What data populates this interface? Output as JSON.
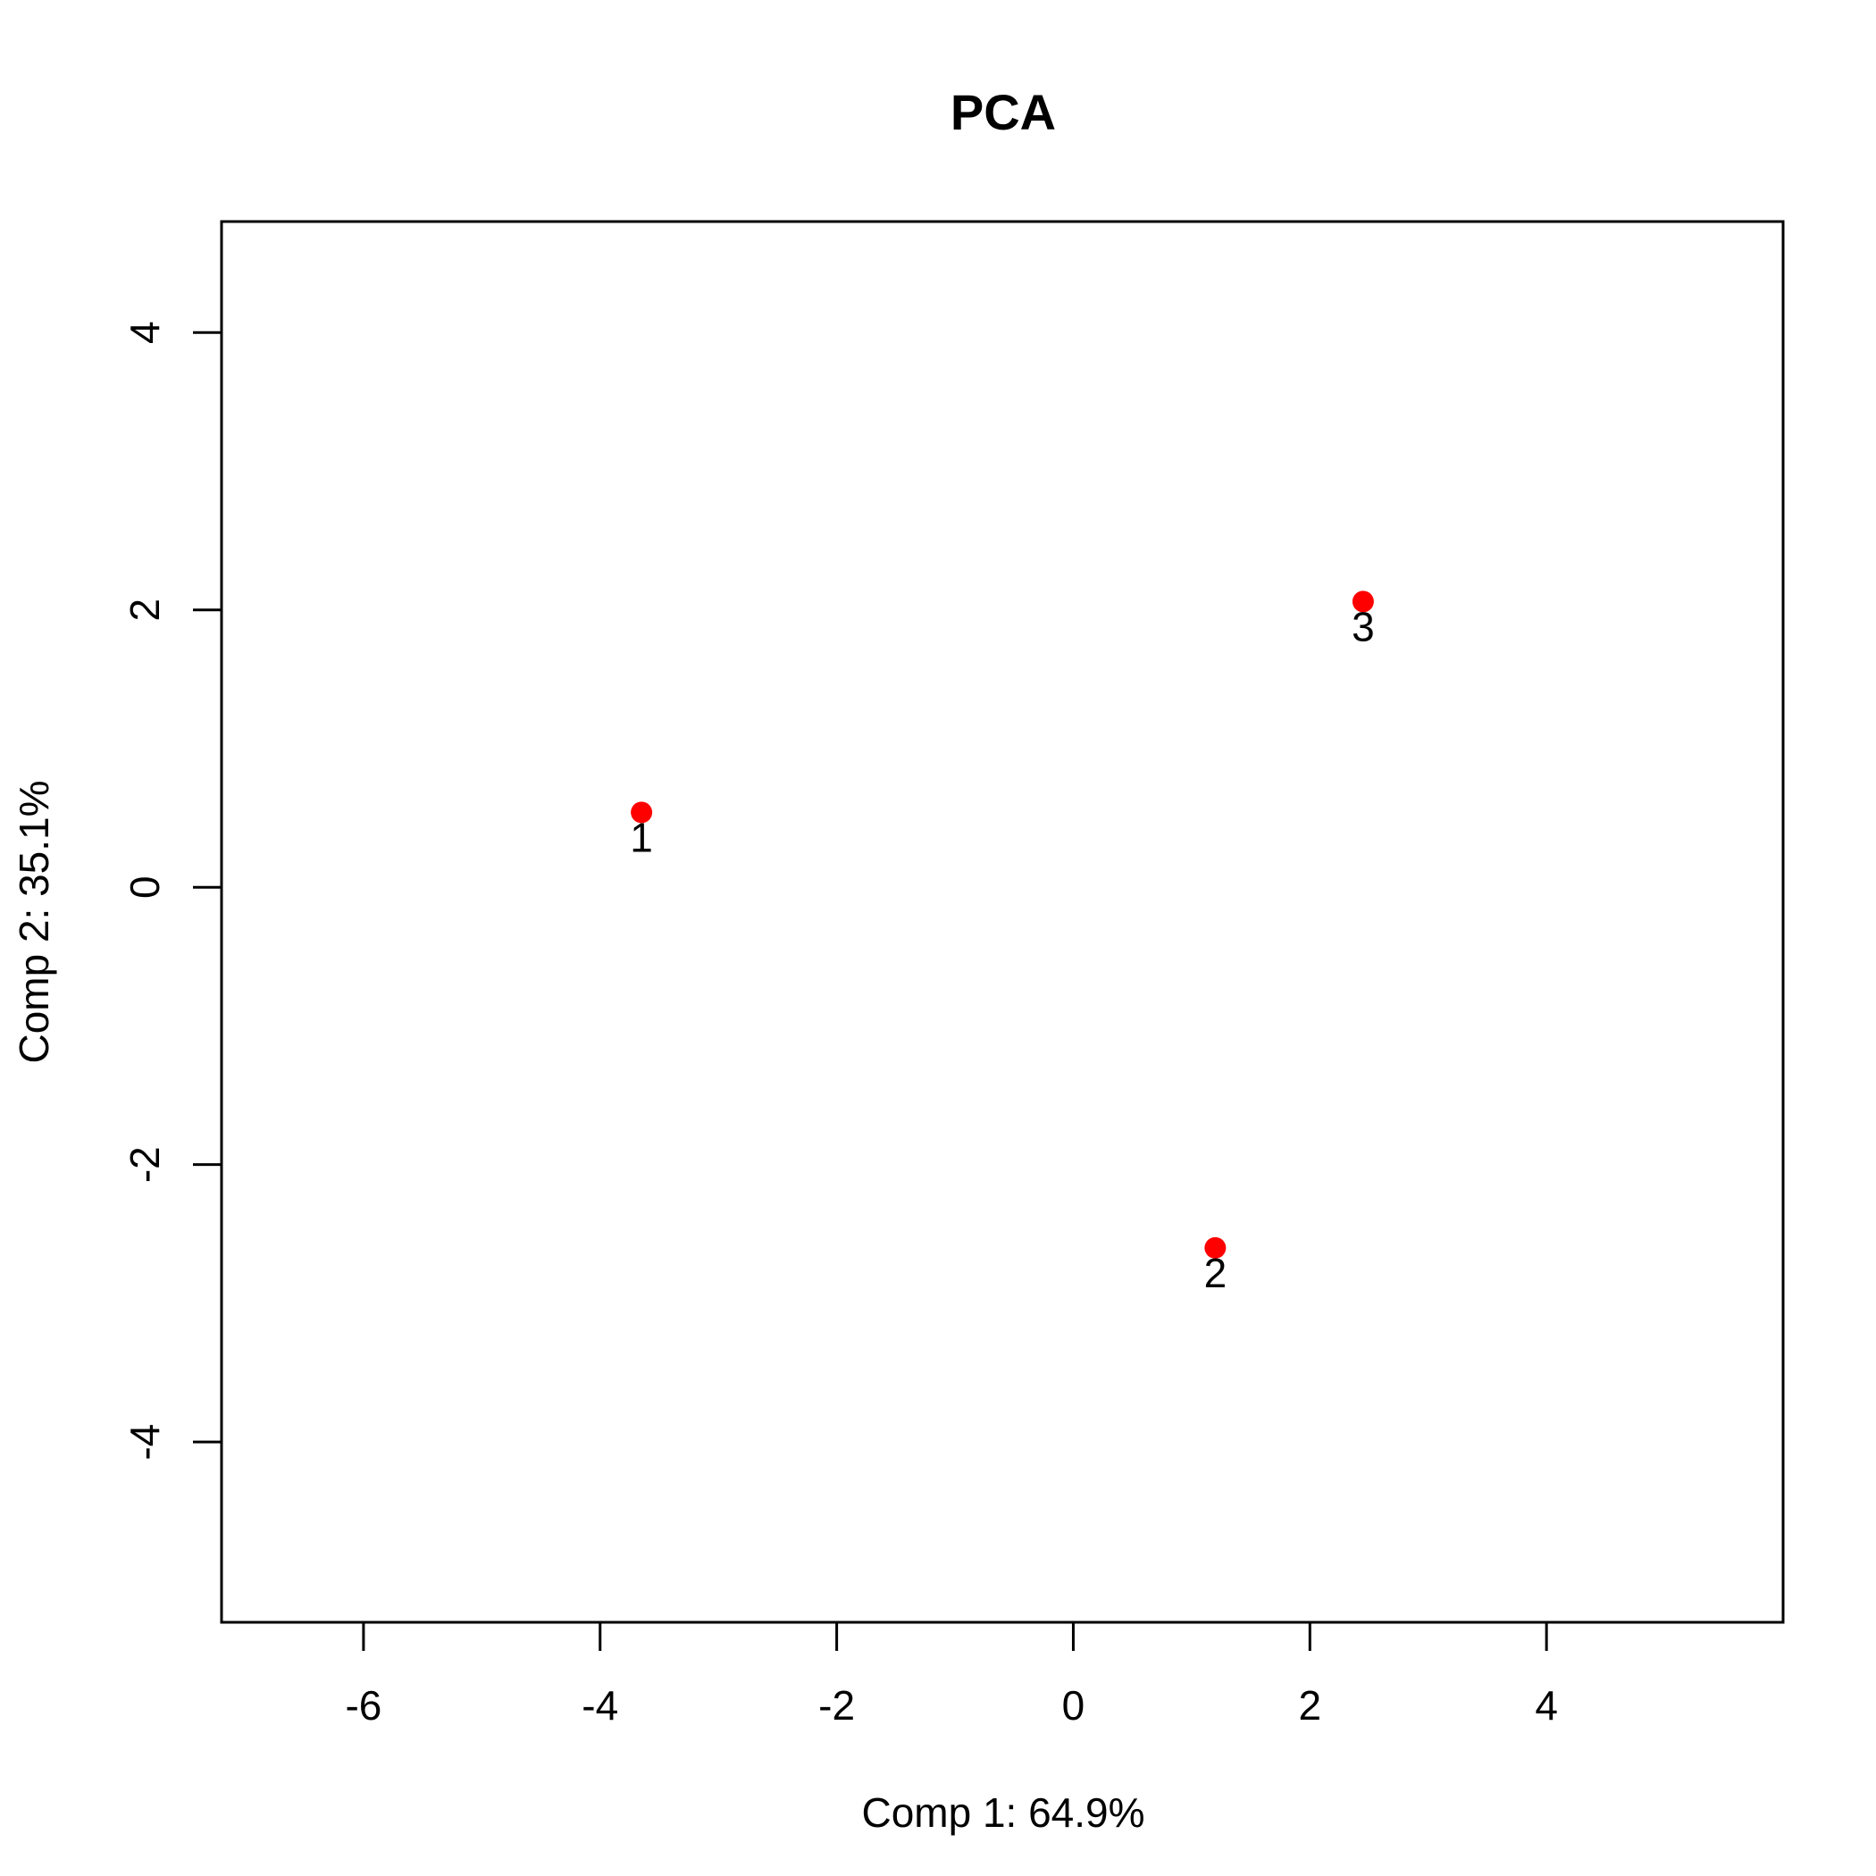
{
  "chart_data": {
    "type": "scatter",
    "title": "PCA",
    "xlabel": "Comp 1: 64.9%",
    "ylabel": "Comp 2: 35.1%",
    "xlim": [
      -7.2,
      6.0
    ],
    "ylim": [
      -5.3,
      4.8
    ],
    "xticks": [
      -6,
      -4,
      -2,
      0,
      2,
      4
    ],
    "yticks": [
      -4,
      -2,
      0,
      2,
      4
    ],
    "xtick_labels": [
      "-6",
      "-4",
      "-2",
      "0",
      "2",
      "4"
    ],
    "ytick_labels": [
      "-4",
      "-2",
      "0",
      "2",
      "4"
    ],
    "grid": false,
    "point_color": "#ff0000",
    "points": [
      {
        "label": "1",
        "x": -3.65,
        "y": 0.54
      },
      {
        "label": "2",
        "x": 1.2,
        "y": -2.6
      },
      {
        "label": "3",
        "x": 2.45,
        "y": 2.06
      }
    ]
  }
}
